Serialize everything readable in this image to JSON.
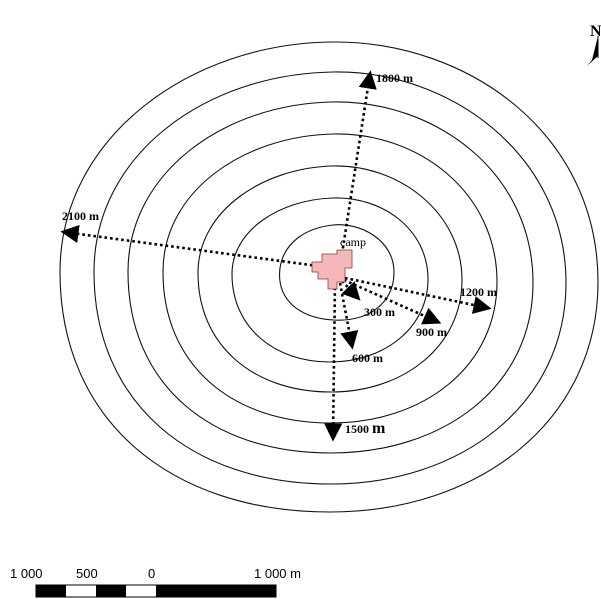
{
  "map": {
    "center_label": "camp",
    "distance_labels": {
      "d300": "300 m",
      "d600": "600 m",
      "d900": "900 m",
      "d1200": "1200 m",
      "d1500a": "1500 ",
      "d1500b": "m",
      "d1800": "1800 m",
      "d2100": "2100 m"
    },
    "north_arrow_label": "N",
    "colors": {
      "camp_fill": "#f4b8b8",
      "contour": "#111111",
      "arrow": "#000000"
    }
  },
  "scale_bar": {
    "labels": [
      "1 000",
      "500",
      "0",
      "1 000 m"
    ]
  }
}
